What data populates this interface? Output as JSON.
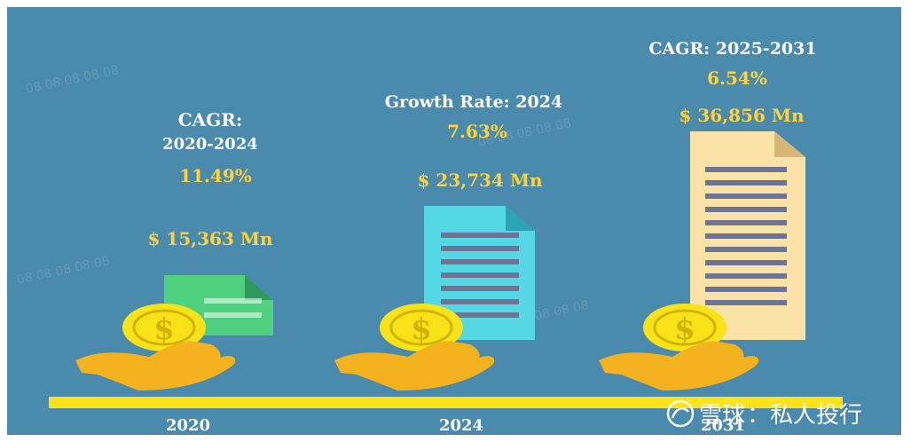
{
  "chart_data": {
    "type": "infographic",
    "categories": [
      "2020",
      "2024",
      "2031"
    ],
    "values": [
      15363,
      23734,
      36856
    ],
    "value_labels": [
      "$ 15,363 Mn",
      "$ 23,734 Mn",
      "$ 36,856 Mn"
    ],
    "annotations": [
      {
        "lines": [
          "CAGR:",
          "2020-2024"
        ],
        "rate": "11.49%"
      },
      {
        "lines": [
          "Growth Rate: 2024"
        ],
        "rate": "7.63%"
      },
      {
        "lines": [
          "CAGR: 2025-2031"
        ],
        "rate": "6.54%"
      }
    ],
    "doc_colors": [
      "#4fd17f",
      "#56d8e4",
      "#fbe3a8"
    ]
  },
  "colors": {
    "background": "#4a8aad",
    "accent_yellow": "#ffe21a",
    "rate_yellow": "#ffd23c",
    "hand_orange": "#f4b21f",
    "coin": "#f7e318",
    "doc_lines": "#6e7494"
  },
  "icons": {
    "coin": "dollar-coin-icon",
    "hand": "open-hand-icon",
    "document": "document-icon"
  },
  "watermark": {
    "logo_text": "雪球",
    "account_text": "：私人投行"
  }
}
